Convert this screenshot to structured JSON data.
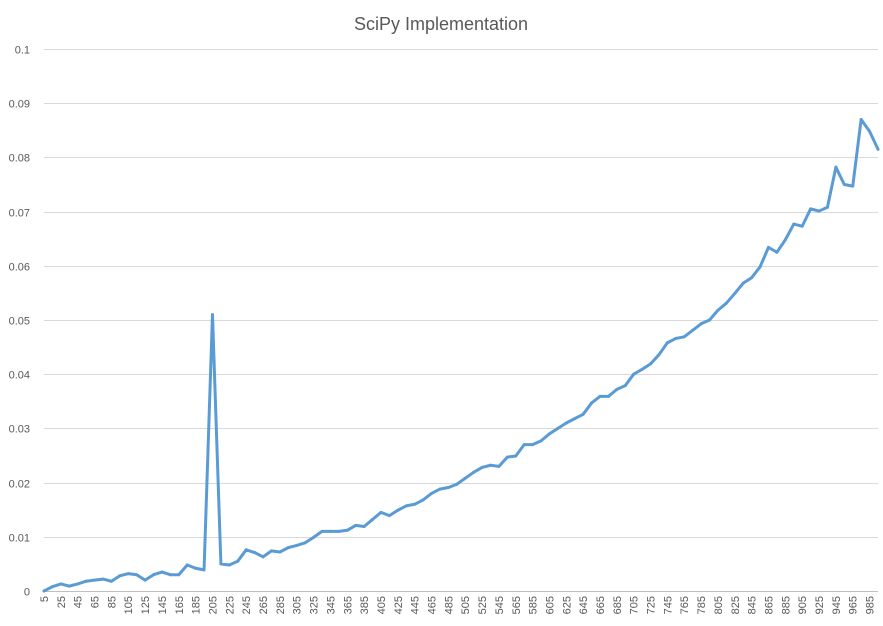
{
  "chart_data": {
    "type": "line",
    "title": "SciPy Implementation",
    "xlabel": "",
    "ylabel": "",
    "ylim": [
      0,
      0.1
    ],
    "yticks": [
      "0",
      "0.01",
      "0.02",
      "0.03",
      "0.04",
      "0.05",
      "0.06",
      "0.07",
      "0.08",
      "0.09",
      "0.1"
    ],
    "grid": true,
    "legend": "none",
    "colors": {
      "series": "#5b9bd5",
      "grid": "#d9d9d9",
      "axis": "#bfbfbf",
      "text": "#595959"
    },
    "x": [
      5,
      15,
      25,
      35,
      45,
      55,
      65,
      75,
      85,
      95,
      105,
      115,
      125,
      135,
      145,
      155,
      165,
      175,
      185,
      195,
      205,
      215,
      225,
      235,
      245,
      255,
      265,
      275,
      285,
      295,
      305,
      315,
      325,
      335,
      345,
      355,
      365,
      375,
      385,
      395,
      405,
      415,
      425,
      435,
      445,
      455,
      465,
      475,
      485,
      495,
      505,
      515,
      525,
      535,
      545,
      555,
      565,
      575,
      585,
      595,
      605,
      615,
      625,
      635,
      645,
      655,
      665,
      675,
      685,
      695,
      705,
      715,
      725,
      735,
      745,
      755,
      765,
      775,
      785,
      795,
      805,
      815,
      825,
      835,
      845,
      855,
      865,
      875,
      885,
      895,
      905,
      915,
      925,
      935,
      945,
      955,
      965,
      975,
      985,
      995
    ],
    "series": [
      {
        "values": [
          0.0,
          0.0008,
          0.0013,
          0.0009,
          0.0013,
          0.0018,
          0.002,
          0.0022,
          0.0018,
          0.0028,
          0.0032,
          0.003,
          0.002,
          0.003,
          0.0035,
          0.003,
          0.003,
          0.0048,
          0.0042,
          0.0039,
          0.051,
          0.005,
          0.0048,
          0.0055,
          0.0076,
          0.0071,
          0.0063,
          0.0074,
          0.0072,
          0.008,
          0.0084,
          0.0089,
          0.0099,
          0.011,
          0.011,
          0.011,
          0.0112,
          0.0121,
          0.0119,
          0.0132,
          0.0145,
          0.0139,
          0.0149,
          0.0157,
          0.016,
          0.0168,
          0.018,
          0.0188,
          0.0191,
          0.0197,
          0.0208,
          0.0219,
          0.0228,
          0.0232,
          0.023,
          0.0247,
          0.0249,
          0.027,
          0.027,
          0.0277,
          0.029,
          0.03,
          0.031,
          0.0318,
          0.0326,
          0.0347,
          0.0359,
          0.0359,
          0.0372,
          0.0379,
          0.04,
          0.0409,
          0.0419,
          0.0436,
          0.0458,
          0.0466,
          0.0469,
          0.0481,
          0.0493,
          0.05,
          0.0518,
          0.0531,
          0.0549,
          0.0568,
          0.0578,
          0.0598,
          0.0634,
          0.0625,
          0.0648,
          0.0677,
          0.0673,
          0.0705,
          0.0701,
          0.0708,
          0.0782,
          0.075,
          0.0747,
          0.087,
          0.0848,
          0.0815
        ]
      }
    ]
  }
}
